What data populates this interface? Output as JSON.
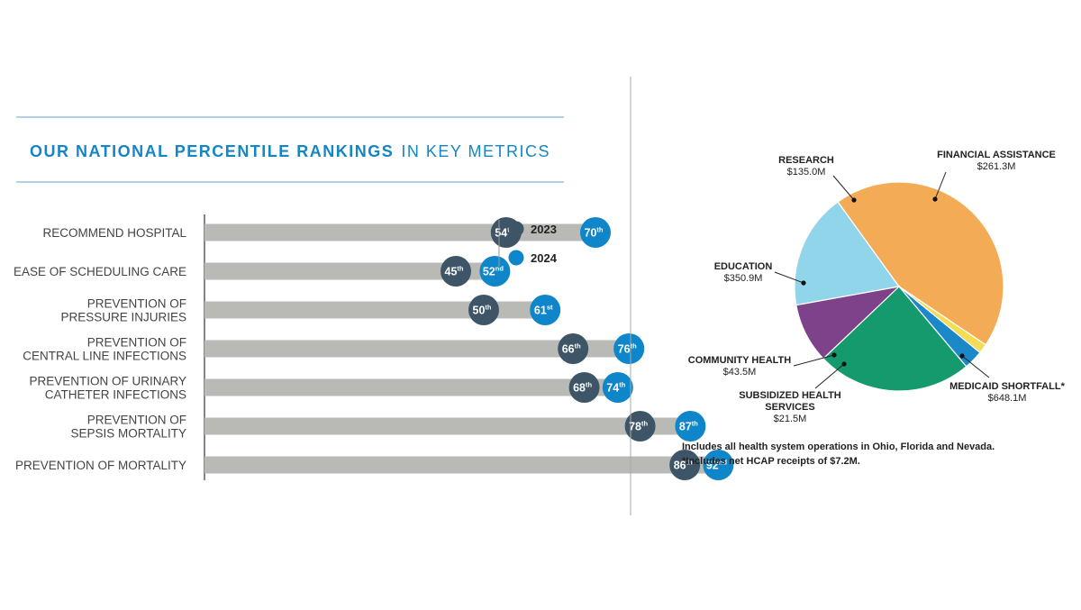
{
  "rankings": {
    "title_bold": "OUR NATIONAL PERCENTILE RANKINGS",
    "title_light": "IN KEY METRICS",
    "legend": [
      {
        "label": "2023",
        "color": "#3d5567"
      },
      {
        "label": "2024",
        "color": "#0f86c9"
      }
    ]
  },
  "pie_notes": [
    "Includes all health system operations in Ohio, Florida and Nevada.",
    "*Includes net HCAP receipts of $7.2M."
  ],
  "chart_data": [
    {
      "type": "bar",
      "title": "OUR NATIONAL PERCENTILE RANKINGS IN KEY METRICS",
      "xlim": [
        0,
        100
      ],
      "categories": [
        [
          "RECOMMEND HOSPITAL"
        ],
        [
          "EASE OF SCHEDULING CARE"
        ],
        [
          "PREVENTION OF",
          "PRESSURE INJURIES"
        ],
        [
          "PREVENTION OF",
          "CENTRAL LINE INFECTIONS"
        ],
        [
          "PREVENTION OF URINARY",
          "CATHETER INFECTIONS"
        ],
        [
          "PREVENTION OF",
          "SEPSIS MORTALITY"
        ],
        [
          "PREVENTION OF MORTALITY"
        ]
      ],
      "series": [
        {
          "name": "2023",
          "color": "#3d5567",
          "values": [
            54,
            45,
            50,
            66,
            68,
            78,
            86
          ],
          "labels": [
            [
              "54",
              "th"
            ],
            [
              "45",
              "th"
            ],
            [
              "50",
              "th"
            ],
            [
              "66",
              "th"
            ],
            [
              "68",
              "th"
            ],
            [
              "78",
              "th"
            ],
            [
              "86",
              "th"
            ]
          ]
        },
        {
          "name": "2024",
          "color": "#0f86c9",
          "values": [
            70,
            52,
            61,
            76,
            74,
            87,
            92
          ],
          "labels": [
            [
              "70",
              "th"
            ],
            [
              "52",
              "nd"
            ],
            [
              "61",
              "st"
            ],
            [
              "76",
              "th"
            ],
            [
              "74",
              "th"
            ],
            [
              "87",
              "th"
            ],
            [
              "92",
              "nd"
            ]
          ]
        }
      ],
      "bar_color": "#b9b9b5"
    },
    {
      "type": "pie",
      "slices": [
        {
          "label": [
            "FINANCIAL ASSISTANCE"
          ],
          "value": 261.3,
          "value_label": "$261.3M",
          "color": "#91d5ea"
        },
        {
          "label": [
            "MEDICAID SHORTFALL*"
          ],
          "value": 648.1,
          "value_label": "$648.1M",
          "color": "#f4ab55"
        },
        {
          "label": [
            "SUBSIDIZED HEALTH",
            "SERVICES"
          ],
          "value": 21.5,
          "value_label": "$21.5M",
          "color": "#f2dd55"
        },
        {
          "label": [
            "COMMUNITY HEALTH"
          ],
          "value": 43.5,
          "value_label": "$43.5M",
          "color": "#1b88c8"
        },
        {
          "label": [
            "EDUCATION"
          ],
          "value": 350.9,
          "value_label": "$350.9M",
          "color": "#149a6c"
        },
        {
          "label": [
            "RESEARCH"
          ],
          "value": 135.0,
          "value_label": "$135.0M",
          "color": "#7d4289"
        }
      ]
    }
  ]
}
